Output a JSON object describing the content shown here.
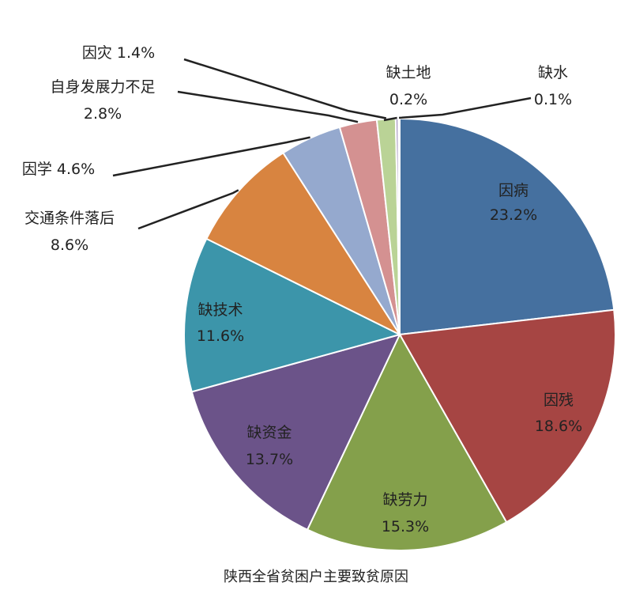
{
  "chart_data": {
    "type": "pie",
    "title": "陕西全省贫困户主要致贫原因",
    "start": "top",
    "direction": "clockwise",
    "slices": [
      {
        "name": "因病",
        "label": "23.2%",
        "value": 23.2,
        "color": "#45709f"
      },
      {
        "name": "因残",
        "label": "18.6%",
        "value": 18.6,
        "color": "#a64543"
      },
      {
        "name": "缺劳力",
        "label": "15.3%",
        "value": 15.3,
        "color": "#84a04b"
      },
      {
        "name": "缺资金",
        "label": "13.7%",
        "value": 13.7,
        "color": "#6b5389"
      },
      {
        "name": "缺技术",
        "label": "11.6%",
        "value": 11.6,
        "color": "#3c95aa"
      },
      {
        "name": "交通条件落后",
        "label": "8.6%",
        "value": 8.6,
        "color": "#d88440"
      },
      {
        "name": "因学",
        "label": "4.6%",
        "value": 4.6,
        "color": "#95a9ce"
      },
      {
        "name": "自身发展力不足",
        "label": "2.8%",
        "value": 2.8,
        "color": "#d49191"
      },
      {
        "name": "因灾",
        "label": "1.4%",
        "value": 1.4,
        "color": "#bad396"
      },
      {
        "name": "缺土地",
        "label": "0.2%",
        "value": 0.2,
        "color": "#a695bf"
      },
      {
        "name": "缺水",
        "label": "0.1%",
        "value": 0.1,
        "color": "#6fb8cf"
      }
    ]
  }
}
